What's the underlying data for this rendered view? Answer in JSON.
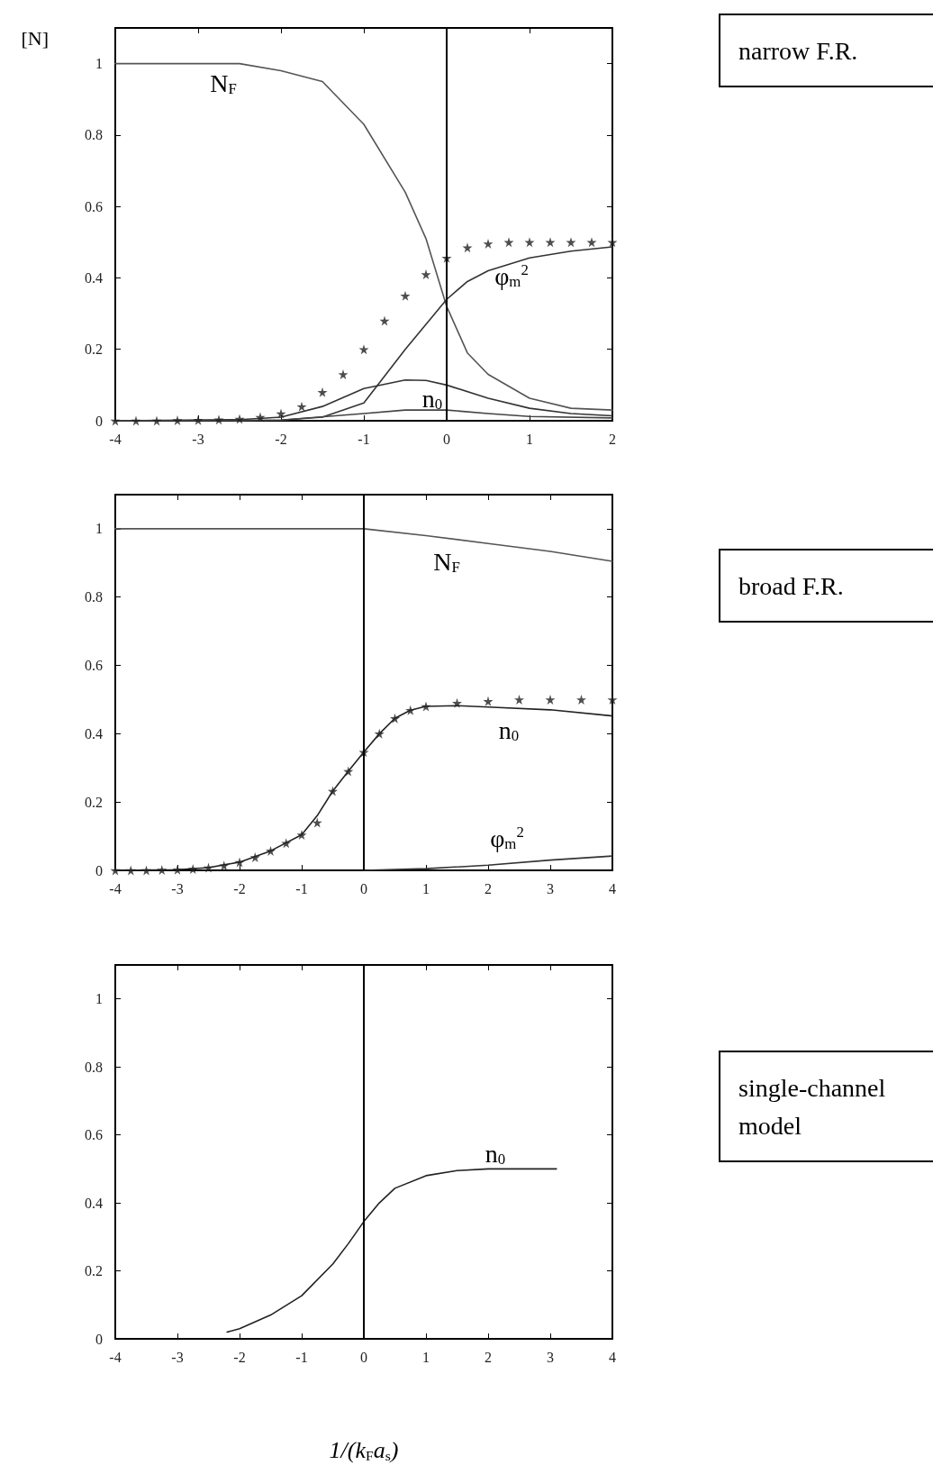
{
  "chart_data": [
    {
      "type": "line",
      "ylabel": "[N]",
      "xlim": [
        -4,
        2
      ],
      "ylim": [
        0,
        1.1
      ],
      "xticks": [
        -4,
        -3,
        -2,
        -1,
        0,
        1,
        2
      ],
      "yticks": [
        0,
        0.2,
        0.4,
        0.6,
        0.8,
        1
      ],
      "grid": false,
      "line_style": "solid",
      "ref_lines": [
        {
          "axis": "x",
          "value": 0,
          "color": "#000000"
        }
      ],
      "annotations": [
        "narrow F.R.",
        "N$_{F}$",
        "φ$_{m}$$^{2}$",
        "n$_{0}$"
      ],
      "series": [
        {
          "type": "line",
          "color": "#555555",
          "marker": "none",
          "x": [
            -4,
            -3,
            -2.5,
            -2,
            -1.5,
            -1,
            -0.5,
            -0.25,
            0,
            0.25,
            0.5,
            1,
            1.5,
            2
          ],
          "values": [
            1,
            1,
            1,
            0.98,
            0.95,
            0.83,
            0.64,
            0.51,
            0.32,
            0.19,
            0.13,
            0.063,
            0.035,
            0.03
          ]
        },
        {
          "type": "scatter",
          "color": "#222222",
          "marker": "star",
          "x": [
            -4,
            -3.75,
            -3.5,
            -3.25,
            -3,
            -2.75,
            -2.5,
            -2.25,
            -2,
            -1.75,
            -1.5,
            -1.25,
            -1,
            -0.75,
            -0.5,
            -0.25,
            0,
            0.25,
            0.5,
            0.75,
            1,
            1.25,
            1.5,
            1.75,
            2
          ],
          "values": [
            0,
            0,
            0,
            0.001,
            0.002,
            0.003,
            0.005,
            0.01,
            0.02,
            0.04,
            0.08,
            0.13,
            0.2,
            0.28,
            0.35,
            0.41,
            0.456,
            0.485,
            0.496,
            0.5,
            0.5,
            0.5,
            0.5,
            0.5,
            0.5
          ]
        },
        {
          "type": "line",
          "color": "#333333",
          "marker": "none",
          "x": [
            -4,
            -2.5,
            -2,
            -1.5,
            -1,
            -0.5,
            -0.25,
            0,
            0.25,
            0.5,
            1,
            1.5,
            2
          ],
          "values": [
            0,
            0,
            0.002,
            0.01,
            0.05,
            0.2,
            0.27,
            0.34,
            0.39,
            0.42,
            0.456,
            0.475,
            0.487
          ]
        },
        {
          "type": "line",
          "color": "#333333",
          "marker": "none",
          "x": [
            -4,
            -2.5,
            -2,
            -1.5,
            -1,
            -0.5,
            -0.25,
            0,
            0.5,
            1,
            1.5,
            2
          ],
          "values": [
            0,
            0.003,
            0.01,
            0.04,
            0.09,
            0.114,
            0.113,
            0.1,
            0.063,
            0.035,
            0.02,
            0.014
          ]
        },
        {
          "type": "line",
          "color": "#444444",
          "marker": "none",
          "x": [
            -4,
            -2,
            -1,
            -0.5,
            0,
            0.5,
            1,
            2
          ],
          "values": [
            0,
            0.002,
            0.02,
            0.03,
            0.03,
            0.02,
            0.012,
            0.008
          ]
        }
      ]
    },
    {
      "type": "line",
      "xlim": [
        -4,
        4
      ],
      "ylim": [
        0,
        1.1
      ],
      "xticks": [
        -4,
        -3,
        -2,
        -1,
        0,
        1,
        2,
        3,
        4
      ],
      "yticks": [
        0,
        0.2,
        0.4,
        0.6,
        0.8,
        1
      ],
      "grid": false,
      "line_style": "solid",
      "ref_lines": [
        {
          "axis": "x",
          "value": 0,
          "color": "#000000"
        }
      ],
      "annotations": [
        "broad F.R.",
        "N$_{F}$",
        "n$_{0}$",
        "φ$_{m}$$^{2}$"
      ],
      "series": [
        {
          "type": "line",
          "color": "#555555",
          "marker": "none",
          "x": [
            -4,
            -2,
            0,
            1,
            2,
            3,
            4
          ],
          "values": [
            1,
            1,
            1,
            0.98,
            0.957,
            0.934,
            0.905
          ]
        },
        {
          "type": "scatter",
          "color": "#222222",
          "marker": "star",
          "x": [
            -4,
            -3.75,
            -3.5,
            -3.25,
            -3,
            -2.75,
            -2.5,
            -2.25,
            -2,
            -1.75,
            -1.5,
            -1.25,
            -1,
            -0.75,
            -0.5,
            -0.25,
            0,
            0.25,
            0.5,
            0.75,
            1,
            1.5,
            2,
            2.5,
            3,
            3.5,
            4
          ],
          "values": [
            0,
            0,
            0,
            0.001,
            0.002,
            0.004,
            0.008,
            0.014,
            0.024,
            0.038,
            0.057,
            0.08,
            0.104,
            0.14,
            0.232,
            0.29,
            0.346,
            0.4,
            0.445,
            0.469,
            0.48,
            0.49,
            0.495,
            0.5,
            0.5,
            0.5,
            0.5
          ]
        },
        {
          "type": "line",
          "color": "#222222",
          "marker": "none",
          "x": [
            -4,
            -3,
            -2.5,
            -2,
            -1.5,
            -1,
            -0.75,
            -0.5,
            -0.25,
            0,
            0.25,
            0.5,
            0.75,
            1,
            1.5,
            2,
            3,
            4
          ],
          "values": [
            0,
            0.002,
            0.008,
            0.024,
            0.057,
            0.104,
            0.16,
            0.232,
            0.29,
            0.346,
            0.4,
            0.445,
            0.469,
            0.48,
            0.482,
            0.478,
            0.47,
            0.452
          ]
        },
        {
          "type": "line",
          "color": "#333333",
          "marker": "none",
          "x": [
            0,
            1,
            2,
            3,
            4
          ],
          "values": [
            0,
            0.005,
            0.015,
            0.03,
            0.042
          ]
        }
      ]
    },
    {
      "type": "line",
      "xlabel": "1/(k$_{F}$a$_{s}$)",
      "xlim": [
        -4,
        4
      ],
      "ylim": [
        0,
        1.1
      ],
      "xticks": [
        -4,
        -3,
        -2,
        -1,
        0,
        1,
        2,
        3,
        4
      ],
      "yticks": [
        0,
        0.2,
        0.4,
        0.6,
        0.8,
        1
      ],
      "grid": false,
      "line_style": "solid",
      "ref_lines": [
        {
          "axis": "x",
          "value": 0,
          "color": "#000000"
        }
      ],
      "annotations": [
        "single-channel model",
        "n$_{0}$"
      ],
      "series": [
        {
          "type": "line",
          "color": "#222222",
          "marker": "none",
          "x": [
            -2.2,
            -2,
            -1.5,
            -1,
            -0.5,
            -0.25,
            0,
            0.25,
            0.5,
            1,
            1.5,
            2,
            3.1
          ],
          "values": [
            0.02,
            0.03,
            0.07,
            0.127,
            0.22,
            0.28,
            0.345,
            0.4,
            0.443,
            0.48,
            0.495,
            0.5,
            0.5
          ]
        }
      ]
    }
  ]
}
